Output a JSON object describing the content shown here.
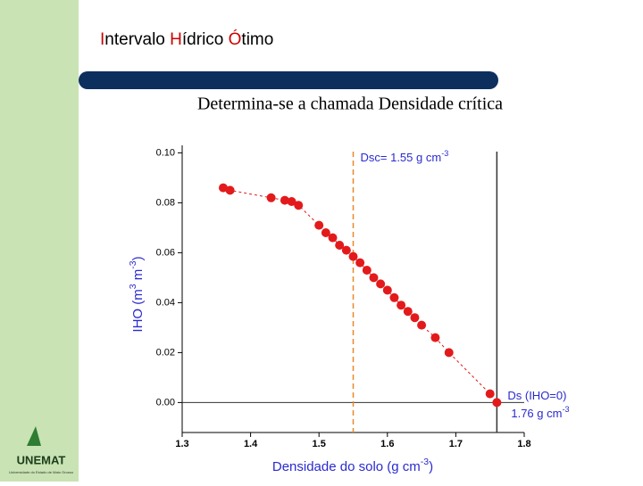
{
  "header": {
    "title_parts": [
      {
        "text": "I",
        "color": "#cc0000"
      },
      {
        "text": "ntervalo ",
        "color": "#000000"
      },
      {
        "text": "H",
        "color": "#cc0000"
      },
      {
        "text": "ídrico ",
        "color": "#000000"
      },
      {
        "text": "Ó",
        "color": "#cc0000"
      },
      {
        "text": "timo",
        "color": "#000000"
      }
    ],
    "subtitle": "Determina-se a chamada Densidade crítica"
  },
  "logo": {
    "name": "UNEMAT",
    "caption": "Universidade do Estado de Mato Grosso"
  },
  "chart_data": {
    "type": "scatter",
    "x_label_parts": [
      "Densidade do solo (g cm",
      "-3",
      ")"
    ],
    "y_label_parts": [
      "IHO (m",
      "3",
      " m",
      "-3",
      ")"
    ],
    "series": [
      {
        "color": "#e31a1c",
        "x": [
          1.36,
          1.37,
          1.43,
          1.45,
          1.46,
          1.47,
          1.5,
          1.51,
          1.52,
          1.53,
          1.54,
          1.55,
          1.56,
          1.57,
          1.58,
          1.59,
          1.6,
          1.61,
          1.62,
          1.63,
          1.64,
          1.65,
          1.67,
          1.69,
          1.75,
          1.76
        ],
        "values": [
          0.086,
          0.085,
          0.082,
          0.081,
          0.0805,
          0.079,
          0.071,
          0.068,
          0.066,
          0.063,
          0.061,
          0.0585,
          0.056,
          0.053,
          0.05,
          0.0475,
          0.045,
          0.042,
          0.039,
          0.0365,
          0.034,
          0.031,
          0.026,
          0.02,
          0.0035,
          0.0
        ]
      }
    ],
    "xlim": [
      1.3,
      1.8
    ],
    "ylim": [
      -0.012,
      0.103
    ],
    "xticks": [
      1.3,
      1.4,
      1.5,
      1.6,
      1.7,
      1.8
    ],
    "yticks": [
      {
        "value": 0,
        "label": "0.00"
      },
      {
        "value": 0.02,
        "label": "0.02"
      },
      {
        "value": 0.04,
        "label": "0.04"
      },
      {
        "value": 0.06,
        "label": "0.06"
      },
      {
        "value": 0.08,
        "label": "0.08"
      },
      {
        "value": 0.1,
        "label": "0.10"
      }
    ],
    "reference_lines": [
      {
        "x": 1.55,
        "color": "#e8892a",
        "dashed": true,
        "label_parts": [
          "Dsc= 1.55 g cm",
          "-3"
        ]
      },
      {
        "x": 1.76,
        "color": "#333333",
        "dashed": false,
        "label_parts": [
          "Ds (IHO=0)"
        ],
        "label2_parts": [
          "1.76 g cm",
          "-3"
        ]
      }
    ],
    "hline": 0
  }
}
